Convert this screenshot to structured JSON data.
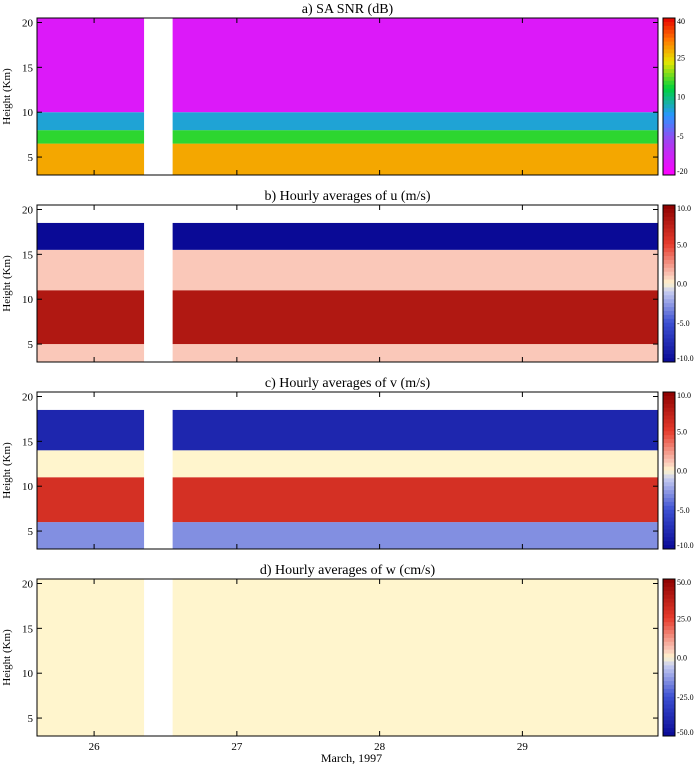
{
  "chart_data": [
    {
      "type": "heatmap",
      "title": "a) SA SNR (dB)",
      "ylabel": "Height (Km)",
      "ylim": [
        3,
        20.5
      ],
      "yticks": [
        "5",
        "10",
        "15",
        "20"
      ],
      "colorbar": {
        "labels": [
          "40",
          "25",
          "10",
          "-5",
          "-20"
        ],
        "range": [
          -20,
          40
        ],
        "palette": "rainbow"
      },
      "layers": [
        {
          "height_range": [
            3,
            6.5
          ],
          "value": 28
        },
        {
          "height_range": [
            6.5,
            8
          ],
          "value": 15
        },
        {
          "height_range": [
            8,
            10
          ],
          "value": 5
        },
        {
          "height_range": [
            10,
            20.5
          ],
          "value": -15
        }
      ],
      "data_gap": [
        26.35,
        26.55
      ]
    },
    {
      "type": "heatmap",
      "title": "b) Hourly averages of u (m/s)",
      "ylabel": "Height (Km)",
      "ylim": [
        3,
        20.5
      ],
      "yticks": [
        "5",
        "10",
        "15",
        "20"
      ],
      "colorbar": {
        "labels": [
          "10.0",
          "5.0",
          "0.0",
          "-5.0",
          "-10.0"
        ],
        "range": [
          -10,
          10
        ],
        "palette": "diverging"
      },
      "layers": [
        {
          "height_range": [
            3,
            5
          ],
          "value": 1
        },
        {
          "height_range": [
            5,
            11
          ],
          "value": 8
        },
        {
          "height_range": [
            11,
            15.5
          ],
          "value": 1
        },
        {
          "height_range": [
            15.5,
            18.5
          ],
          "value": -10
        }
      ],
      "data_gap": [
        26.35,
        26.55
      ]
    },
    {
      "type": "heatmap",
      "title": "c) Hourly averages of v (m/s)",
      "ylabel": "Height (Km)",
      "ylim": [
        3,
        20.5
      ],
      "yticks": [
        "5",
        "10",
        "15",
        "20"
      ],
      "colorbar": {
        "labels": [
          "10.0",
          "5.0",
          "0.0",
          "-5.0",
          "-10.0"
        ],
        "range": [
          -10,
          10
        ],
        "palette": "diverging"
      },
      "layers": [
        {
          "height_range": [
            3,
            6
          ],
          "value": -3
        },
        {
          "height_range": [
            6,
            11
          ],
          "value": 6
        },
        {
          "height_range": [
            11,
            14
          ],
          "value": 0
        },
        {
          "height_range": [
            14,
            18.5
          ],
          "value": -8
        }
      ],
      "data_gap": [
        26.35,
        26.55
      ]
    },
    {
      "type": "heatmap",
      "title": "d) Hourly averages of w (cm/s)",
      "ylabel": "Height (Km)",
      "ylim": [
        3,
        20.5
      ],
      "yticks": [
        "5",
        "10",
        "15",
        "20"
      ],
      "colorbar": {
        "labels": [
          "50.0",
          "25.0",
          "0.0",
          "-25.0",
          "-50.0"
        ],
        "range": [
          -50,
          50
        ],
        "palette": "diverging"
      },
      "layers": [
        {
          "height_range": [
            3,
            20.5
          ],
          "value": 0
        }
      ],
      "data_gap": [
        26.35,
        26.55
      ]
    }
  ],
  "x_axis": {
    "range": [
      25.6,
      29.95
    ],
    "ticks": [
      26,
      27,
      28,
      29
    ],
    "tick_labels": [
      "26",
      "27",
      "28",
      "29"
    ],
    "label": "March, 1997"
  }
}
